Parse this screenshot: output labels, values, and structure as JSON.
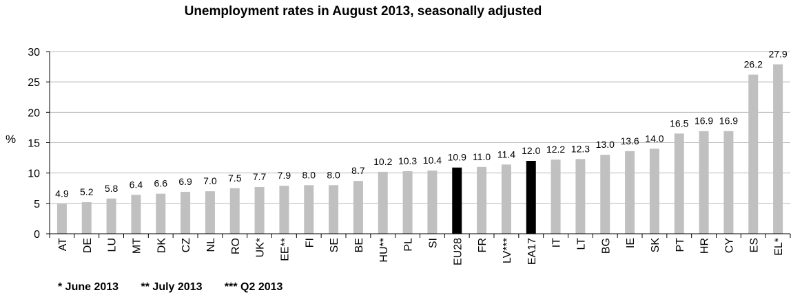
{
  "chart_data": {
    "type": "bar",
    "title": "Unemployment rates in August 2013, seasonally adjusted",
    "ylabel": "%",
    "xlabel": "",
    "ylim": [
      0,
      30
    ],
    "yticks": [
      "0",
      "5",
      "10",
      "15",
      "20",
      "25",
      "30"
    ],
    "grid": true,
    "categories": [
      "AT",
      "DE",
      "LU",
      "MT",
      "DK",
      "CZ",
      "NL",
      "RO",
      "UK*",
      "EE**",
      "FI",
      "SE",
      "BE",
      "HU**",
      "PL",
      "SI",
      "EU28",
      "FR",
      "LV***",
      "EA17",
      "IT",
      "LT",
      "BG",
      "IE",
      "SK",
      "PT",
      "HR",
      "CY",
      "ES",
      "EL*"
    ],
    "values": [
      4.9,
      5.2,
      5.8,
      6.4,
      6.6,
      6.9,
      7.0,
      7.5,
      7.7,
      7.9,
      8.0,
      8.0,
      8.7,
      10.2,
      10.3,
      10.4,
      10.9,
      11.0,
      11.4,
      12.0,
      12.2,
      12.3,
      13.0,
      13.6,
      14.0,
      16.5,
      16.9,
      16.9,
      26.2,
      27.9
    ],
    "value_labels": [
      "4.9",
      "5.2",
      "5.8",
      "6.4",
      "6.6",
      "6.9",
      "7.0",
      "7.5",
      "7.7",
      "7.9",
      "8.0",
      "8.0",
      "8.7",
      "10.2",
      "10.3",
      "10.4",
      "10.9",
      "11.0",
      "11.4",
      "12.0",
      "12.2",
      "12.3",
      "13.0",
      "13.6",
      "14.0",
      "16.5",
      "16.9",
      "16.9",
      "26.2",
      "27.9"
    ],
    "highlight": [
      "EU28",
      "EA17"
    ],
    "colors": {
      "bar": "#c0c0c0",
      "highlight": "#000000",
      "grid": "#b8b8b8",
      "axis": "#000000"
    }
  },
  "footnotes": [
    "* June 2013",
    "** July 2013",
    "*** Q2 2013"
  ]
}
